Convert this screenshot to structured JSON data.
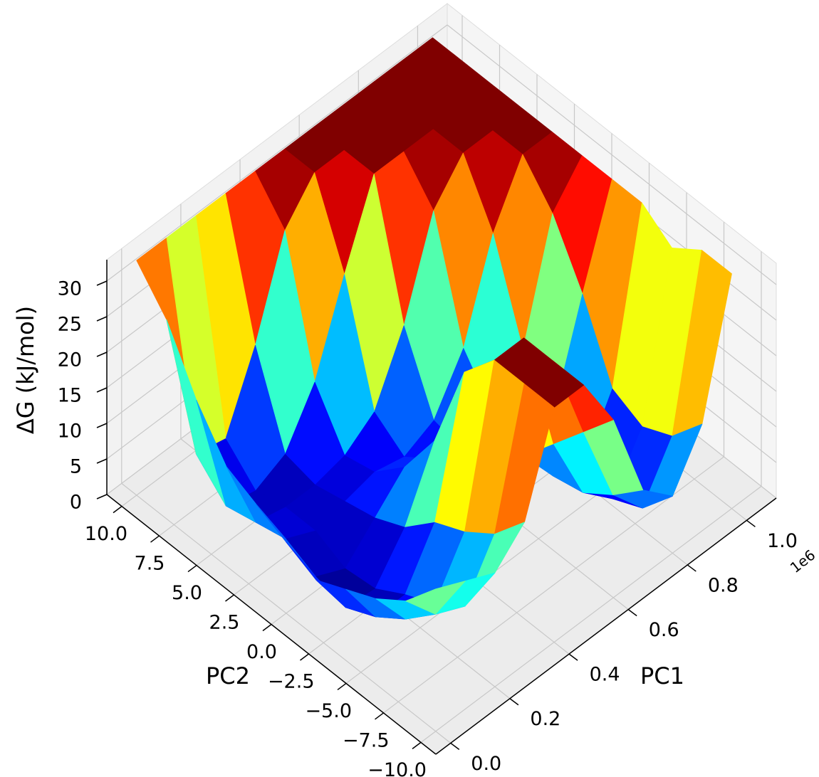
{
  "chart_data": {
    "type": "surface",
    "xlabel": "PC1",
    "ylabel": "PC2",
    "zlabel": "ΔG (kJ/mol)",
    "x_offset_label": "1e6",
    "x": [
      0,
      0.1,
      0.2,
      0.3,
      0.4,
      0.5,
      0.6,
      0.7,
      0.8,
      0.9,
      1.0
    ],
    "y": [
      -10,
      -8,
      -6,
      -4,
      -2,
      0,
      2,
      4,
      6,
      8,
      10
    ],
    "z": [
      [
        20,
        18,
        16,
        20,
        33,
        33,
        25,
        12,
        8,
        15,
        33
      ],
      [
        15,
        10,
        8,
        15,
        33,
        33,
        20,
        8,
        3,
        10,
        33
      ],
      [
        12,
        6,
        5,
        12,
        33,
        33,
        15,
        5,
        1,
        8,
        30
      ],
      [
        10,
        3,
        3,
        10,
        28,
        25,
        10,
        4,
        2,
        10,
        33
      ],
      [
        8,
        1,
        0.5,
        6,
        15,
        12,
        8,
        5,
        6,
        20,
        33
      ],
      [
        10,
        2,
        0,
        4,
        8,
        6,
        4,
        6,
        12,
        28,
        33
      ],
      [
        12,
        4,
        2,
        3,
        4,
        3,
        5,
        12,
        25,
        33,
        33
      ],
      [
        14,
        3,
        2,
        2,
        3,
        6,
        15,
        28,
        33,
        33,
        33
      ],
      [
        20,
        2,
        1,
        3,
        10,
        22,
        33,
        33,
        33,
        33,
        33
      ],
      [
        28,
        6,
        5,
        15,
        28,
        33,
        33,
        33,
        33,
        33,
        33
      ],
      [
        33,
        33,
        33,
        33,
        33,
        33,
        33,
        33,
        33,
        33,
        33
      ]
    ],
    "colormap": "jet",
    "xlim": [
      -0.05,
      1.1
    ],
    "ylim": [
      -11,
      11
    ],
    "zlim": [
      0,
      33
    ],
    "xticks": [
      {
        "value": 0,
        "label": "0.0"
      },
      0.2,
      0.4,
      0.6,
      0.8,
      {
        "value": 1,
        "label": "1.0"
      }
    ],
    "yticks": [
      {
        "value": -10,
        "label": "−10.0"
      },
      {
        "value": -7.5,
        "label": "−7.5"
      },
      {
        "value": -5,
        "label": "−5.0"
      },
      {
        "value": -2.5,
        "label": "−2.5"
      },
      {
        "value": 0,
        "label": "0.0"
      },
      2.5,
      {
        "value": 5,
        "label": "5.0"
      },
      7.5,
      {
        "value": 10,
        "label": "10.0"
      }
    ],
    "zticks": [
      0,
      5,
      10,
      15,
      20,
      25,
      30
    ],
    "grid": true
  }
}
